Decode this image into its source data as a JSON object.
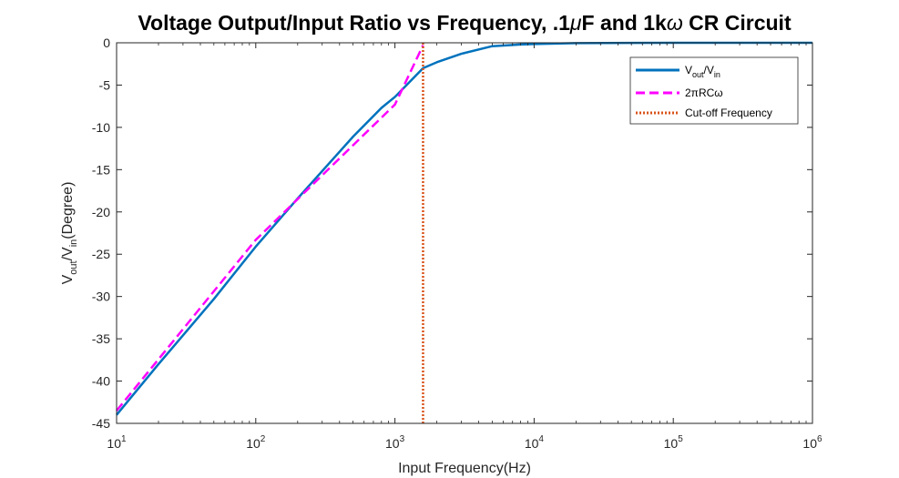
{
  "chart_data": {
    "type": "line",
    "title": {
      "prefix": "Voltage Output/Input Ratio vs Frequency, .1",
      "mu": "μ",
      "middle": "F and 1k",
      "omega": "ω",
      "suffix": " CR Circuit"
    },
    "xlabel": "Input Frequency(Hz)",
    "ylabel": {
      "v1": "V",
      "sub1": "out",
      "slash": "/V",
      "sub2": "in",
      "rest": "(Degree)"
    },
    "x_scale": "log",
    "xlim": [
      10,
      1000000
    ],
    "ylim": [
      -45,
      0
    ],
    "x_ticks": [
      {
        "base": "10",
        "exp": "1",
        "value": 10
      },
      {
        "base": "10",
        "exp": "2",
        "value": 100
      },
      {
        "base": "10",
        "exp": "3",
        "value": 1000
      },
      {
        "base": "10",
        "exp": "4",
        "value": 10000
      },
      {
        "base": "10",
        "exp": "5",
        "value": 100000
      },
      {
        "base": "10",
        "exp": "6",
        "value": 1000000
      }
    ],
    "y_ticks": [
      {
        "label": "0",
        "value": 0
      },
      {
        "label": "-5",
        "value": -5
      },
      {
        "label": "-10",
        "value": -10
      },
      {
        "label": "-15",
        "value": -15
      },
      {
        "label": "-20",
        "value": -20
      },
      {
        "label": "-25",
        "value": -25
      },
      {
        "label": "-30",
        "value": -30
      },
      {
        "label": "-35",
        "value": -35
      },
      {
        "label": "-40",
        "value": -40
      },
      {
        "label": "-45",
        "value": -45
      }
    ],
    "grid": false,
    "legend_position": "top-right",
    "series": [
      {
        "name": {
          "v1": "V",
          "sub1": "out",
          "slash": "/V",
          "sub2": "in"
        },
        "color": "#0072BD",
        "style": "solid",
        "x": [
          10,
          20,
          50,
          100,
          200,
          500,
          800,
          1000,
          1592,
          2000,
          3000,
          5000,
          8000,
          10000,
          20000,
          50000,
          100000,
          1000000
        ],
        "y": [
          -44.0,
          -38.0,
          -30.3,
          -24.1,
          -18.4,
          -11.1,
          -7.7,
          -6.4,
          -3.0,
          -2.3,
          -1.3,
          -0.4,
          -0.2,
          -0.15,
          -0.04,
          -0.01,
          0,
          0
        ]
      },
      {
        "name": {
          "text": "2πRCω"
        },
        "color": "#FF00FF",
        "style": "dashed",
        "x": [
          10,
          100,
          1000,
          1592
        ],
        "y": [
          -43.5,
          -23.3,
          -7.3,
          -0.3
        ]
      },
      {
        "name": {
          "text": "Cut-off Frequency"
        },
        "color": "#D95319",
        "style": "dotted",
        "x": [
          1592,
          1592
        ],
        "y": [
          -45,
          0
        ]
      }
    ]
  }
}
